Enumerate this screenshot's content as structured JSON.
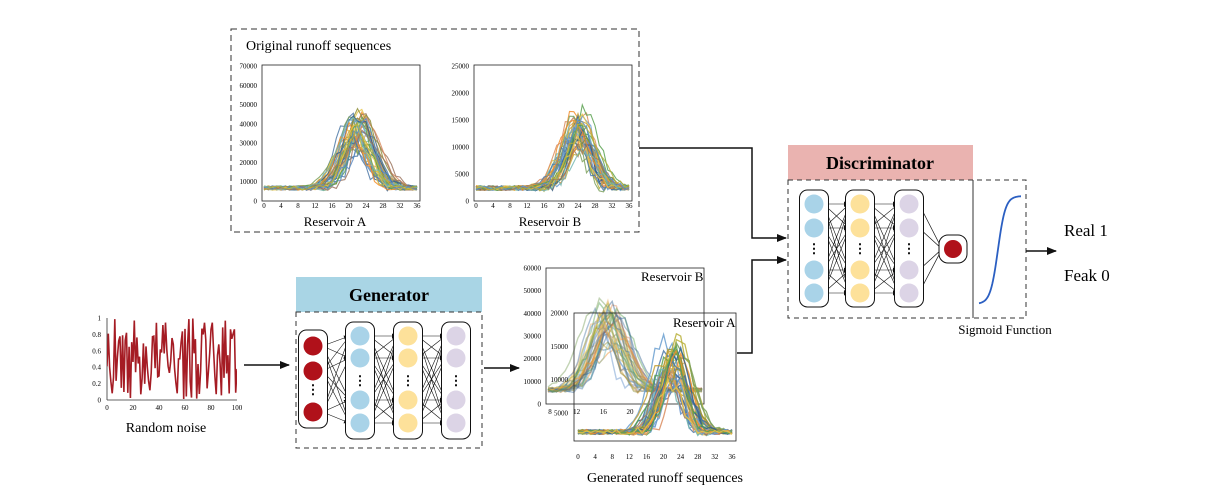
{
  "original": {
    "title": "Original runoff sequences",
    "chart_a": {
      "caption": "Reservoir A",
      "y_ticks": [
        "70000",
        "60000",
        "50000",
        "40000",
        "30000",
        "20000",
        "10000",
        "0"
      ],
      "x_ticks": [
        "0",
        "4",
        "8",
        "12",
        "16",
        "20",
        "24",
        "28",
        "32",
        "36"
      ]
    },
    "chart_b": {
      "caption": "Reservoir B",
      "y_ticks": [
        "25000",
        "20000",
        "15000",
        "10000",
        "5000",
        "0"
      ],
      "x_ticks": [
        "0",
        "4",
        "8",
        "12",
        "16",
        "20",
        "24",
        "28",
        "32",
        "36"
      ]
    }
  },
  "noise": {
    "caption": "Random noise",
    "y_ticks": [
      "1",
      "0.8",
      "0.6",
      "0.4",
      "0.2",
      "0"
    ],
    "x_ticks": [
      "0",
      "20",
      "40",
      "60",
      "80",
      "100"
    ],
    "color": "#a51c24"
  },
  "generator": {
    "label": "Generator",
    "header_color": "#a9d5e5",
    "ellipsis": "⋮"
  },
  "generated": {
    "caption": "Generated runoff sequences",
    "label_b": "Reservoir B",
    "label_a": "Reservoir A",
    "outer_y_ticks": [
      "60000",
      "50000",
      "40000",
      "30000",
      "20000",
      "10000",
      "0"
    ],
    "inner_y_ticks": [
      "20000",
      "15000",
      "10000",
      "5000"
    ],
    "inner_x_ticks": [
      "8",
      "12",
      "16",
      "20"
    ],
    "outer_x_ticks": [
      "0",
      "4",
      "8",
      "12",
      "16",
      "20",
      "24",
      "28",
      "32",
      "36"
    ]
  },
  "discriminator": {
    "label": "Discriminator",
    "header_color": "#eab3b0",
    "sigmoid_caption": "Sigmoid Function",
    "ellipsis": "⋮"
  },
  "output": {
    "real": "Real 1",
    "fake": "Feak 0"
  },
  "colors": {
    "red_node": "#b0111a",
    "blue_node": "#a9d3e8",
    "yellow_node": "#fde19a",
    "lavender_node": "#dcd4e6",
    "sigmoid": "#2b5fc2"
  }
}
